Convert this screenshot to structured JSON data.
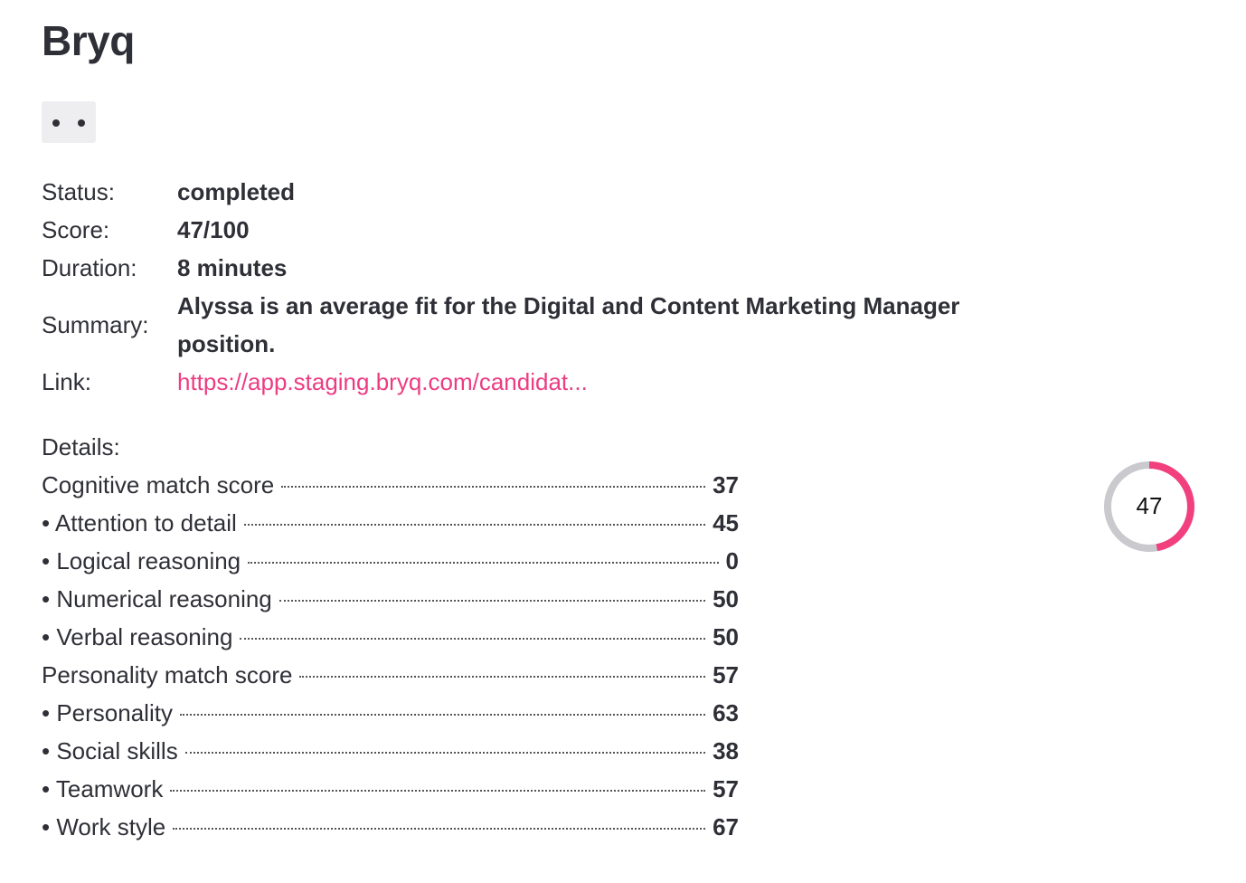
{
  "header": {
    "title": "Bryq"
  },
  "fields": [
    {
      "label": "Status:",
      "value": "completed"
    },
    {
      "label": "Score:",
      "value": "47/100"
    },
    {
      "label": "Duration:",
      "value": "8 minutes"
    },
    {
      "label": "Summary:",
      "value": "Alyssa is an average fit for the Digital and Content Marketing Manager position."
    },
    {
      "label": "Link:",
      "value": "https://app.staging.bryq.com/candidat..."
    }
  ],
  "details": {
    "title": "Details:",
    "rows": [
      {
        "label": "Cognitive match score",
        "value": 37
      },
      {
        "label": "• Attention to detail",
        "value": 45
      },
      {
        "label": "• Logical reasoning",
        "value": 0
      },
      {
        "label": "• Numerical reasoning",
        "value": 50
      },
      {
        "label": "• Verbal reasoning",
        "value": 50
      },
      {
        "label": "Personality match score",
        "value": 57
      },
      {
        "label": "• Personality",
        "value": 63
      },
      {
        "label": "• Social skills",
        "value": 38
      },
      {
        "label": "• Teamwork",
        "value": 57
      },
      {
        "label": "• Work style",
        "value": 67
      }
    ]
  },
  "gauge": {
    "value": 47,
    "range": [
      0,
      100
    ],
    "color": "#f2407f",
    "track_color": "#c9c9ce"
  }
}
